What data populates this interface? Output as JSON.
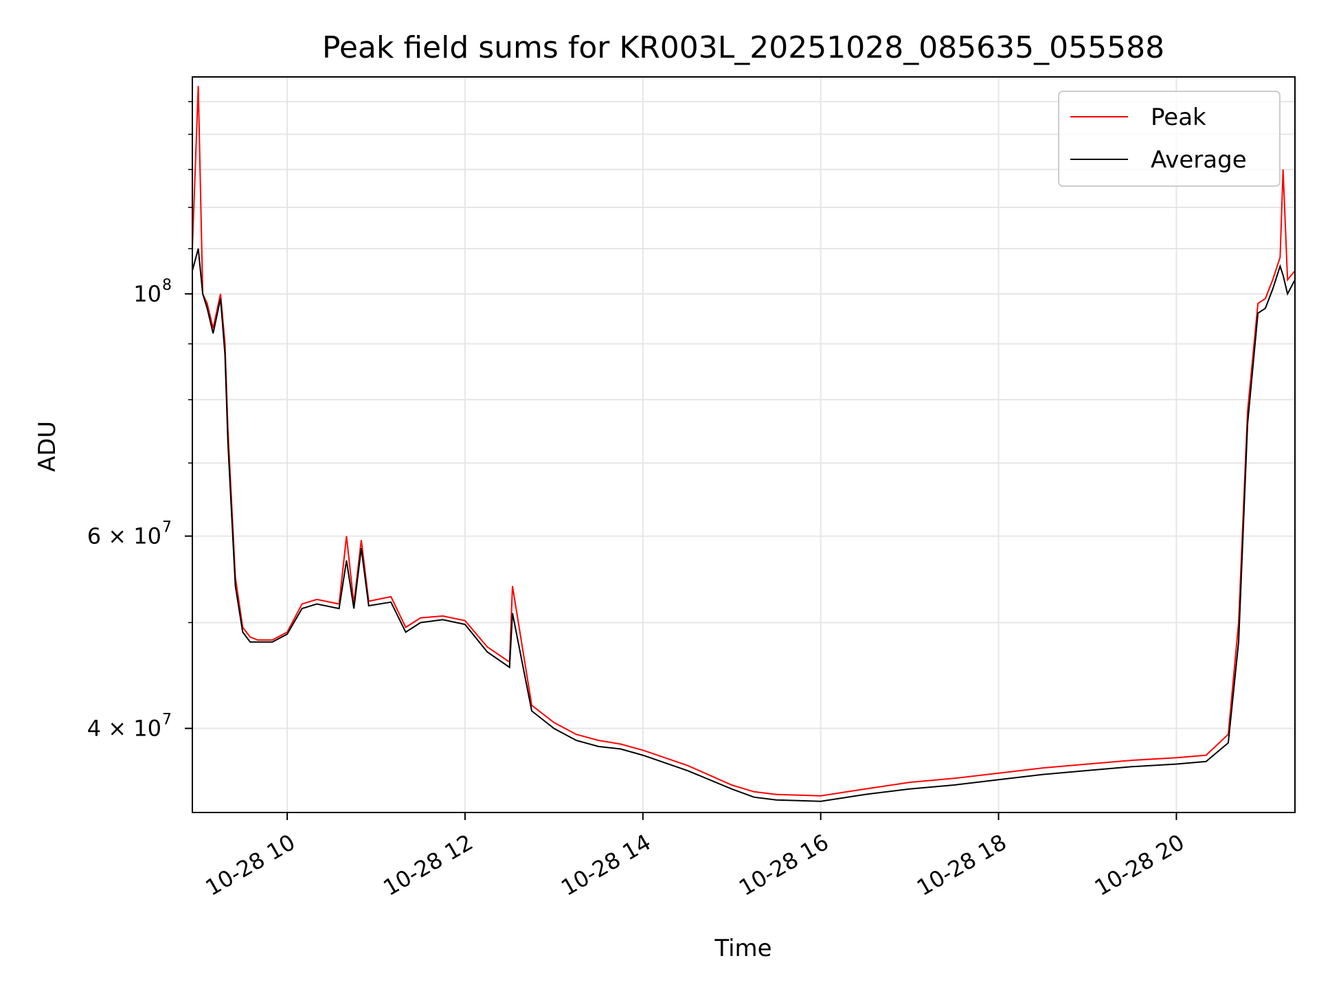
{
  "chart_data": {
    "type": "line",
    "title": "Peak field sums for KR003L_20251028_085635_055588",
    "xlabel": "Time",
    "ylabel": "ADU",
    "y_scale": "log",
    "ylim": [
      33500000,
      158000000
    ],
    "x_range": [
      "2025-10-28 08:56",
      "2025-10-28 21:20"
    ],
    "x_ticks": [
      {
        "label": "10-28 10",
        "t": "2025-10-28 10:00"
      },
      {
        "label": "10-28 12",
        "t": "2025-10-28 12:00"
      },
      {
        "label": "10-28 14",
        "t": "2025-10-28 14:00"
      },
      {
        "label": "10-28 16",
        "t": "2025-10-28 16:00"
      },
      {
        "label": "10-28 18",
        "t": "2025-10-28 18:00"
      },
      {
        "label": "10-28 20",
        "t": "2025-10-28 20:00"
      }
    ],
    "y_ticks": [
      {
        "label": "10",
        "exp": "8",
        "value": 100000000
      },
      {
        "label": "6 × 10",
        "exp": "7",
        "value": 60000000
      },
      {
        "label": "4 × 10",
        "exp": "7",
        "value": 40000000
      }
    ],
    "grid": true,
    "legend_position": "top-right",
    "series": [
      {
        "name": "Peak",
        "color": "#ff0000",
        "x": [
          "2025-10-28 08:56",
          "2025-10-28 09:00",
          "2025-10-28 09:03",
          "2025-10-28 09:06",
          "2025-10-28 09:10",
          "2025-10-28 09:15",
          "2025-10-28 09:18",
          "2025-10-28 09:20",
          "2025-10-28 09:25",
          "2025-10-28 09:30",
          "2025-10-28 09:35",
          "2025-10-28 09:40",
          "2025-10-28 09:50",
          "2025-10-28 10:00",
          "2025-10-28 10:10",
          "2025-10-28 10:20",
          "2025-10-28 10:35",
          "2025-10-28 10:40",
          "2025-10-28 10:45",
          "2025-10-28 10:50",
          "2025-10-28 10:55",
          "2025-10-28 11:10",
          "2025-10-28 11:20",
          "2025-10-28 11:30",
          "2025-10-28 11:45",
          "2025-10-28 12:00",
          "2025-10-28 12:15",
          "2025-10-28 12:30",
          "2025-10-28 12:32",
          "2025-10-28 12:45",
          "2025-10-28 13:00",
          "2025-10-28 13:15",
          "2025-10-28 13:30",
          "2025-10-28 13:45",
          "2025-10-28 14:00",
          "2025-10-28 14:30",
          "2025-10-28 15:00",
          "2025-10-28 15:15",
          "2025-10-28 15:30",
          "2025-10-28 16:00",
          "2025-10-28 16:30",
          "2025-10-28 17:00",
          "2025-10-28 17:30",
          "2025-10-28 18:00",
          "2025-10-28 18:30",
          "2025-10-28 19:00",
          "2025-10-28 19:30",
          "2025-10-28 20:00",
          "2025-10-28 20:20",
          "2025-10-28 20:35",
          "2025-10-28 20:42",
          "2025-10-28 20:48",
          "2025-10-28 20:55",
          "2025-10-28 21:00",
          "2025-10-28 21:05",
          "2025-10-28 21:10",
          "2025-10-28 21:12",
          "2025-10-28 21:15",
          "2025-10-28 21:20"
        ],
        "y": [
          110000000,
          155000000,
          100000000,
          98000000,
          93000000,
          100000000,
          90000000,
          75000000,
          55000000,
          49500000,
          48500000,
          48200000,
          48200000,
          49000000,
          52000000,
          52500000,
          52000000,
          60000000,
          52000000,
          59500000,
          52300000,
          52800000,
          49500000,
          50500000,
          50700000,
          50200000,
          47500000,
          46000000,
          54000000,
          42000000,
          40500000,
          39500000,
          39000000,
          38700000,
          38200000,
          37000000,
          35500000,
          35000000,
          34800000,
          34700000,
          35200000,
          35700000,
          36000000,
          36400000,
          36800000,
          37100000,
          37400000,
          37600000,
          37800000,
          39500000,
          50000000,
          78000000,
          98000000,
          99000000,
          103000000,
          108000000,
          130000000,
          103000000,
          105000000
        ]
      },
      {
        "name": "Average",
        "color": "#000000",
        "x": [
          "2025-10-28 08:56",
          "2025-10-28 09:00",
          "2025-10-28 09:03",
          "2025-10-28 09:06",
          "2025-10-28 09:10",
          "2025-10-28 09:15",
          "2025-10-28 09:18",
          "2025-10-28 09:20",
          "2025-10-28 09:25",
          "2025-10-28 09:30",
          "2025-10-28 09:35",
          "2025-10-28 09:40",
          "2025-10-28 09:50",
          "2025-10-28 10:00",
          "2025-10-28 10:10",
          "2025-10-28 10:20",
          "2025-10-28 10:35",
          "2025-10-28 10:40",
          "2025-10-28 10:45",
          "2025-10-28 10:50",
          "2025-10-28 10:55",
          "2025-10-28 11:10",
          "2025-10-28 11:20",
          "2025-10-28 11:30",
          "2025-10-28 11:45",
          "2025-10-28 12:00",
          "2025-10-28 12:15",
          "2025-10-28 12:30",
          "2025-10-28 12:32",
          "2025-10-28 12:45",
          "2025-10-28 13:00",
          "2025-10-28 13:15",
          "2025-10-28 13:30",
          "2025-10-28 13:45",
          "2025-10-28 14:00",
          "2025-10-28 14:30",
          "2025-10-28 15:00",
          "2025-10-28 15:15",
          "2025-10-28 15:30",
          "2025-10-28 16:00",
          "2025-10-28 16:30",
          "2025-10-28 17:00",
          "2025-10-28 17:30",
          "2025-10-28 18:00",
          "2025-10-28 18:30",
          "2025-10-28 19:00",
          "2025-10-28 19:30",
          "2025-10-28 20:00",
          "2025-10-28 20:20",
          "2025-10-28 20:35",
          "2025-10-28 20:42",
          "2025-10-28 20:48",
          "2025-10-28 20:55",
          "2025-10-28 21:00",
          "2025-10-28 21:05",
          "2025-10-28 21:10",
          "2025-10-28 21:12",
          "2025-10-28 21:15",
          "2025-10-28 21:20"
        ],
        "y": [
          105000000,
          110000000,
          100000000,
          97000000,
          92000000,
          99000000,
          88000000,
          73000000,
          54000000,
          49000000,
          48000000,
          48000000,
          48000000,
          48800000,
          51500000,
          52000000,
          51500000,
          57000000,
          51500000,
          58500000,
          51800000,
          52200000,
          49000000,
          50000000,
          50300000,
          49800000,
          47000000,
          45500000,
          51000000,
          41500000,
          40000000,
          39000000,
          38500000,
          38300000,
          37800000,
          36600000,
          35200000,
          34600000,
          34400000,
          34300000,
          34800000,
          35200000,
          35500000,
          35900000,
          36300000,
          36600000,
          36900000,
          37100000,
          37300000,
          38800000,
          48000000,
          76000000,
          96000000,
          97000000,
          101000000,
          106000000,
          104000000,
          100000000,
          103000000
        ]
      }
    ]
  }
}
